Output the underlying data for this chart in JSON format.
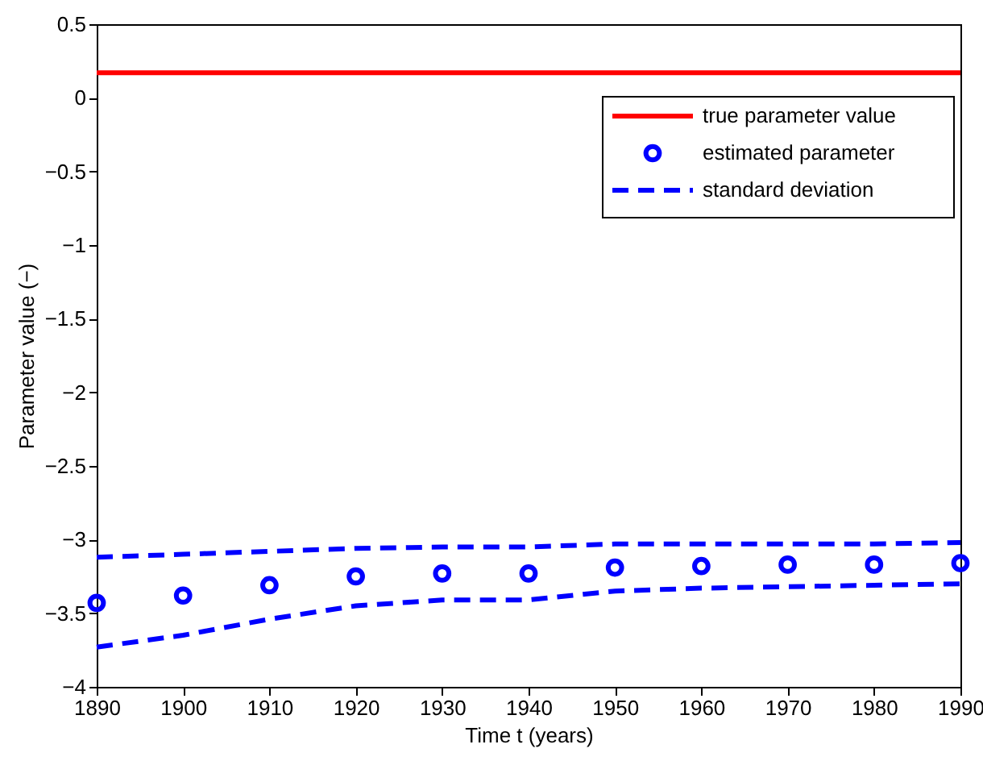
{
  "chart_data": {
    "type": "line",
    "xlabel": "Time t (years)",
    "ylabel": "Parameter value (−)",
    "x": [
      1890,
      1900,
      1910,
      1920,
      1930,
      1940,
      1950,
      1960,
      1970,
      1980,
      1990
    ],
    "xlim": [
      1890,
      1990
    ],
    "xticks": [
      1890,
      1900,
      1910,
      1920,
      1930,
      1940,
      1950,
      1960,
      1970,
      1980,
      1990
    ],
    "ylim": [
      -4,
      0.5
    ],
    "yticks": [
      {
        "value": -4,
        "label": "−4"
      },
      {
        "value": -3.5,
        "label": "−3.5"
      },
      {
        "value": -3,
        "label": "−3"
      },
      {
        "value": -2.5,
        "label": "−2.5"
      },
      {
        "value": -2,
        "label": "−2"
      },
      {
        "value": -1.5,
        "label": "−1.5"
      },
      {
        "value": -1,
        "label": "−1"
      },
      {
        "value": -0.5,
        "label": "−0.5"
      },
      0,
      0.5
    ],
    "grid": false,
    "legend": "top right",
    "series": [
      {
        "name": "true parameter value",
        "line_style": "solid",
        "color": "#ff0000",
        "values": [
          0.17,
          0.17,
          0.17,
          0.17,
          0.17,
          0.17,
          0.17,
          0.17,
          0.17,
          0.17,
          0.17
        ]
      },
      {
        "name": "estimated parameter",
        "type": "scatter",
        "marker": "circle",
        "color": "#0000ff",
        "values": [
          -3.43,
          -3.38,
          -3.31,
          -3.25,
          -3.23,
          -3.23,
          -3.19,
          -3.18,
          -3.17,
          -3.17,
          -3.16
        ]
      },
      {
        "name": "standard deviation",
        "line_style": "dashed",
        "color": "#0000ff",
        "values": [
          -3.12,
          -3.1,
          -3.08,
          -3.06,
          -3.05,
          -3.05,
          -3.03,
          -3.03,
          -3.03,
          -3.03,
          -3.02
        ]
      },
      {
        "line_style": "dashed",
        "color": "#0000ff",
        "values": [
          -3.73,
          -3.65,
          -3.54,
          -3.45,
          -3.41,
          -3.41,
          -3.35,
          -3.33,
          -3.32,
          -3.31,
          -3.3
        ]
      }
    ]
  }
}
